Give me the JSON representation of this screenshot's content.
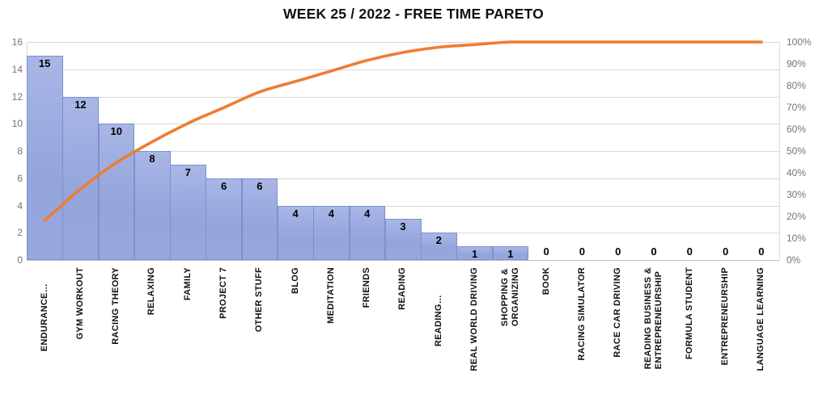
{
  "chart_data": {
    "type": "pareto (bar + cumulative line)",
    "title": "WEEK 25 / 2022 - FREE TIME PARETO",
    "categories": [
      "ENDURANCE…",
      "GYM WORKOUT",
      "RACING THEORY",
      "RELAXING",
      "FAMILY",
      "PROJECT 7",
      "OTHER STUFF",
      "BLOG",
      "MEDITATION",
      "FRIENDS",
      "READING",
      "READING…",
      "REAL WORLD DRIVING",
      "SHOPPING &\nORGANIZING",
      "BOOK",
      "RACING SIMULATOR",
      "RACE CAR DRIVING",
      "READING BUSINESS &\nENTREPRENEURSHIP",
      "FORMULA STUDENT",
      "ENTREPRENEURSHIP",
      "LANGUAGE LEARNING"
    ],
    "series": [
      {
        "name": "hours",
        "type": "bar",
        "values": [
          15,
          12,
          10,
          8,
          7,
          6,
          6,
          4,
          4,
          4,
          3,
          2,
          1,
          1,
          0,
          0,
          0,
          0,
          0,
          0,
          0
        ]
      },
      {
        "name": "cumulative-percent",
        "type": "line",
        "values": [
          18.1,
          32.5,
          44.6,
          54.2,
          62.7,
          69.9,
          77.1,
          81.9,
          86.7,
          91.6,
          95.2,
          97.6,
          98.8,
          100,
          100,
          100,
          100,
          100,
          100,
          100,
          100
        ]
      }
    ],
    "left_axis": {
      "ticks": [
        "16",
        "14",
        "12",
        "10",
        "8",
        "6",
        "4",
        "2",
        "0"
      ],
      "max": 16,
      "min": 0
    },
    "right_axis": {
      "ticks": [
        "100%",
        "90%",
        "80%",
        "70%",
        "60%",
        "50%",
        "40%",
        "30%",
        "20%",
        "10%",
        "0%"
      ],
      "max": 100,
      "min": 0
    },
    "grid": true,
    "legend": false,
    "colors": {
      "bar_fill": "#97A8DE",
      "bar_border": "#7D90CE",
      "line": "#ED7D31",
      "gridline": "#D9D9D9",
      "axis_text": "#757575",
      "label_text": "#111111"
    }
  }
}
